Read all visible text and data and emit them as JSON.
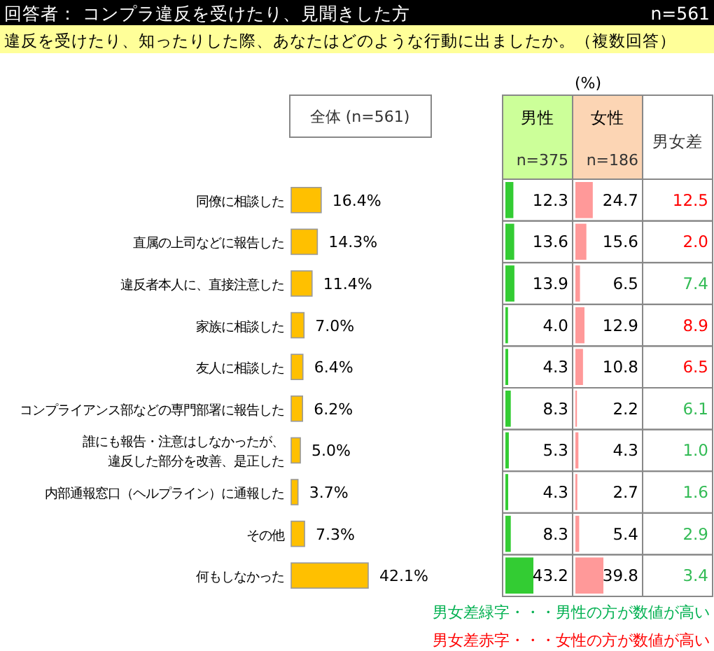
{
  "chart_data": [
    {
      "type": "bar",
      "orientation": "horizontal",
      "title": "回答者： コンプラ違反を受けたり、見聞きした方",
      "subtitle": "違反を受けたり、知ったりした際、あなたはどのような行動に出ましたか。（複数回答）",
      "annotations": [
        "n=561"
      ],
      "legend": "top",
      "categories": [
        "同僚に相談した",
        "直属の上司などに報告した",
        "違反者本人に、直接注意した",
        "家族に相談した",
        "友人に相談した",
        "コンプライアンス部などの専門部署に報告した",
        "誰にも報告・注意はしなかったが、違反した部分を改善、是正した",
        "内部通報窓口（ヘルプライン）に通報した",
        "その他",
        "何もしなかった"
      ],
      "series": [
        {
          "name": "全体 (n=561)",
          "color": "#ffc000",
          "values": [
            16.4,
            14.3,
            11.4,
            7.0,
            6.4,
            6.2,
            5.0,
            3.7,
            7.3,
            42.1
          ],
          "value_labels": [
            "16.4%",
            "14.3%",
            "11.4%",
            "7.0%",
            "6.4%",
            "6.2%",
            "5.0%",
            "3.7%",
            "7.3%",
            "42.1%"
          ]
        }
      ]
    },
    {
      "type": "bar",
      "orientation": "horizontal",
      "title": "男性",
      "subtitle": "n=375",
      "annotations": [
        "(%)"
      ],
      "series": [
        {
          "color": "#33cc33",
          "values": [
            12.3,
            13.6,
            13.9,
            4.0,
            4.3,
            8.3,
            5.3,
            4.3,
            8.3,
            43.2
          ],
          "value_labels": [
            "12.3",
            "13.6",
            "13.9",
            "4.0",
            "4.3",
            "8.3",
            "5.3",
            "4.3",
            "8.3",
            "43.2"
          ]
        }
      ]
    },
    {
      "type": "bar",
      "orientation": "horizontal",
      "title": "女性",
      "subtitle": "n=186",
      "series": [
        {
          "color": "#ff9999",
          "values": [
            24.7,
            15.6,
            6.5,
            12.9,
            10.8,
            2.2,
            4.3,
            2.7,
            5.4,
            39.8
          ],
          "value_labels": [
            "24.7",
            "15.6",
            "6.5",
            "12.9",
            "10.8",
            "2.2",
            "4.3",
            "2.7",
            "5.4",
            "39.8"
          ]
        }
      ]
    },
    {
      "type": "other",
      "title": "男女差",
      "values": [
        12.5,
        2.0,
        7.4,
        8.9,
        6.5,
        6.1,
        1.0,
        1.6,
        2.9,
        3.4
      ],
      "value_labels": [
        "12.5",
        "2.0",
        "7.4",
        "8.9",
        "6.5",
        "6.1",
        "1.0",
        "1.6",
        "2.9",
        "3.4"
      ],
      "colors": [
        "#ff0000",
        "#ff0000",
        "#33bb55",
        "#ff0000",
        "#ff0000",
        "#33bb55",
        "#33bb55",
        "#33bb55",
        "#33bb55",
        "#33bb55"
      ],
      "annotations": [
        "男女差緑字・・・男性の方が数値が高い",
        "男女差赤字・・・女性の方が数値が高い"
      ]
    }
  ]
}
